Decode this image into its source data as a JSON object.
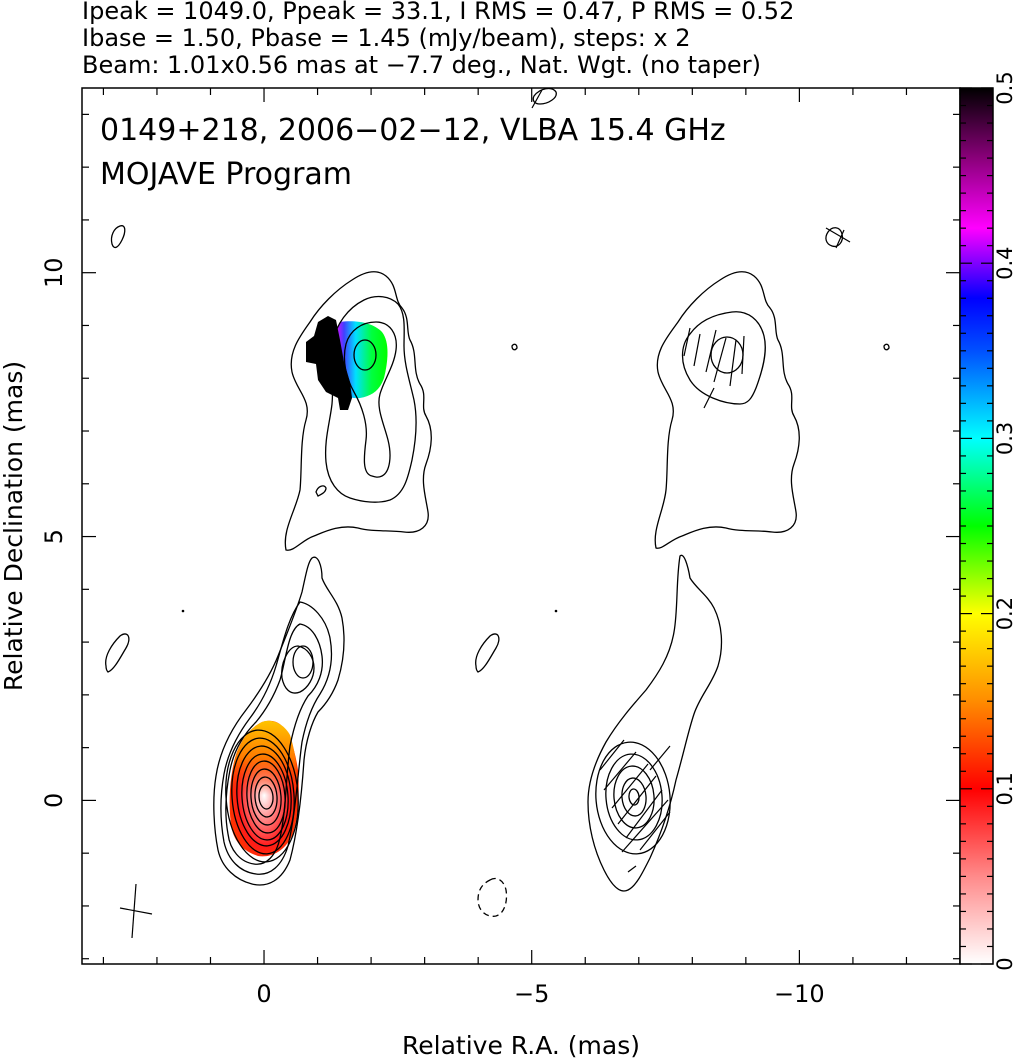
{
  "header": {
    "line1": "Ipeak = 1049.0, Ppeak = 33.1, I RMS = 0.47, P RMS = 0.52",
    "line2": "Ibase = 1.50, Pbase = 1.45 (mJy/beam), steps: x 2",
    "line3": "Beam: 1.01x0.56 mas at −7.7 deg., Nat. Wgt. (no taper)"
  },
  "plot": {
    "title_line1": "0149+218, 2006−02−12, VLBA 15.4 GHz",
    "title_line2": "MOJAVE Program"
  },
  "chart_data": {
    "type": "heatmap",
    "xlabel": "Relative R.A. (mas)",
    "ylabel": "Relative Declination (mas)",
    "xlim": [
      3.4,
      -13.0
    ],
    "ylim": [
      -3.1,
      13.5
    ],
    "x_ticks": [
      {
        "v": 0,
        "label": "0"
      },
      {
        "v": -5,
        "label": "−5"
      },
      {
        "v": -10,
        "label": "−10"
      }
    ],
    "y_ticks": [
      {
        "v": 0,
        "label": "0"
      },
      {
        "v": 5,
        "label": "5"
      },
      {
        "v": 10,
        "label": "10"
      }
    ],
    "colorbar": {
      "range": [
        0,
        0.5
      ],
      "ticks": [
        {
          "v": 0,
          "label": "0"
        },
        {
          "v": 0.1,
          "label": "0.1"
        },
        {
          "v": 0.2,
          "label": "0.2"
        },
        {
          "v": 0.3,
          "label": "0.3"
        },
        {
          "v": 0.4,
          "label": "0.4"
        },
        {
          "v": 0.5,
          "label": "0.5"
        }
      ],
      "stops": [
        {
          "v": 0.0,
          "color": "#ffffff"
        },
        {
          "v": 0.05,
          "color": "#ff8a8a"
        },
        {
          "v": 0.1,
          "color": "#ff0000"
        },
        {
          "v": 0.15,
          "color": "#ff8c00"
        },
        {
          "v": 0.2,
          "color": "#ffff00"
        },
        {
          "v": 0.25,
          "color": "#00ff00"
        },
        {
          "v": 0.3,
          "color": "#00ffff"
        },
        {
          "v": 0.35,
          "color": "#0050ff"
        },
        {
          "v": 0.38,
          "color": "#0000ff"
        },
        {
          "v": 0.42,
          "color": "#ff00ff"
        },
        {
          "v": 0.46,
          "color": "#8a007a"
        },
        {
          "v": 0.5,
          "color": "#000000"
        }
      ]
    },
    "beam": {
      "major_mas": 1.01,
      "minor_mas": 0.56,
      "pa_deg": -7.7
    },
    "components": [
      {
        "panel": "left",
        "x": 0.0,
        "y": 0.1,
        "kind": "core",
        "n_levels": 9
      },
      {
        "panel": "left",
        "x": -0.65,
        "y": 2.6,
        "kind": "jet knot",
        "n_levels": 4
      },
      {
        "panel": "left",
        "x": -1.8,
        "y": 8.4,
        "kind": "jet knot",
        "n_levels": 3
      },
      {
        "panel": "right",
        "x": -6.85,
        "y": 0.1,
        "kind": "core",
        "n_levels": 5
      },
      {
        "panel": "right",
        "x": -8.6,
        "y": 8.4,
        "kind": "jet knot",
        "n_levels": 3
      }
    ],
    "fractional_polarization": [
      {
        "region": "core",
        "x": 0.0,
        "y": 0.2,
        "values": [
          0.05,
          0.09,
          0.12,
          0.15
        ]
      },
      {
        "region": "northern knot",
        "x": -1.5,
        "y": 8.3,
        "values": [
          0.26,
          0.36,
          0.44,
          0.5
        ]
      }
    ],
    "grid": false
  }
}
